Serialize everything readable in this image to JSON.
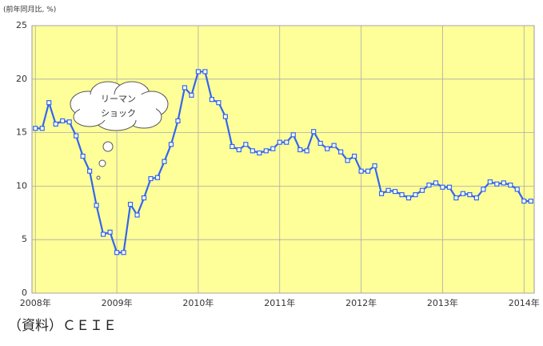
{
  "chart_data": {
    "type": "line",
    "y_axis_label": "(前年同月比, %)",
    "categories": [
      "2008年",
      null,
      null,
      null,
      null,
      null,
      null,
      null,
      null,
      null,
      null,
      null,
      "2009年",
      null,
      null,
      null,
      null,
      null,
      null,
      null,
      null,
      null,
      null,
      null,
      "2010年",
      null,
      null,
      null,
      null,
      null,
      null,
      null,
      null,
      null,
      null,
      null,
      "2011年",
      null,
      null,
      null,
      null,
      null,
      null,
      null,
      null,
      null,
      null,
      null,
      "2012年",
      null,
      null,
      null,
      null,
      null,
      null,
      null,
      null,
      null,
      null,
      null,
      "2013年",
      null,
      null,
      null,
      null,
      null,
      null,
      null,
      null,
      null,
      null,
      null,
      "2014年",
      null
    ],
    "values": [
      15.4,
      15.4,
      17.8,
      15.8,
      16.1,
      16.0,
      14.7,
      12.8,
      11.4,
      8.2,
      5.5,
      5.7,
      3.8,
      3.8,
      8.3,
      7.3,
      8.9,
      10.7,
      10.8,
      12.3,
      13.9,
      16.1,
      19.2,
      18.5,
      20.7,
      20.7,
      18.1,
      17.8,
      16.5,
      13.7,
      13.4,
      13.9,
      13.3,
      13.1,
      13.3,
      13.5,
      14.1,
      14.1,
      14.8,
      13.4,
      13.3,
      15.1,
      14.0,
      13.5,
      13.8,
      13.2,
      12.4,
      12.8,
      11.4,
      11.4,
      11.9,
      9.3,
      9.6,
      9.5,
      9.2,
      8.9,
      9.2,
      9.6,
      10.1,
      10.3,
      9.9,
      9.9,
      8.9,
      9.3,
      9.2,
      8.9,
      9.7,
      10.4,
      10.2,
      10.3,
      10.1,
      9.7,
      8.6,
      8.6
    ],
    "color": "#3366ee",
    "background": "#ffff99",
    "ylim": [
      0,
      25
    ],
    "yticks": [
      0,
      5,
      10,
      15,
      20,
      25
    ],
    "grid": true,
    "annotations": [
      "リーマン",
      "ショック"
    ],
    "source": "（資料）ＣＥＩＥ"
  }
}
